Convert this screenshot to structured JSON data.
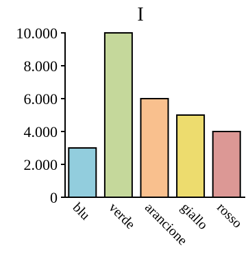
{
  "chart_data": {
    "type": "bar",
    "title": "I",
    "xlabel": "",
    "ylabel": "",
    "categories": [
      "blu",
      "verde",
      "arancione",
      "giallo",
      "rosso"
    ],
    "values": [
      3000,
      10000,
      6000,
      5000,
      4000
    ],
    "colors": [
      "#92cddd",
      "#c5d89b",
      "#f9c08e",
      "#eddc6e",
      "#dc9895"
    ],
    "ylim": [
      0,
      10000
    ],
    "yticks": [
      0,
      2000,
      4000,
      6000,
      8000,
      10000
    ],
    "ytick_labels": [
      "0",
      "2.000",
      "4.000",
      "6.000",
      "8.000",
      "10.000"
    ],
    "grid": false,
    "legend": "none"
  }
}
